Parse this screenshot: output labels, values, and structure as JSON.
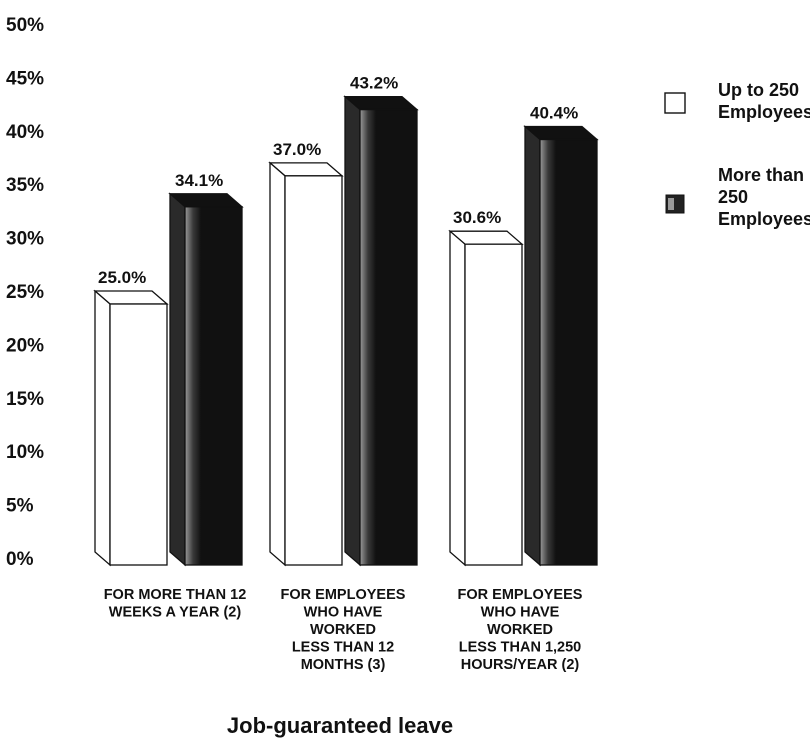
{
  "chart_data": {
    "type": "bar",
    "title": "Job-guaranteed leave",
    "ylim": [
      0,
      50
    ],
    "yticks": [
      "0%",
      "5%",
      "10%",
      "15%",
      "20%",
      "25%",
      "30%",
      "35%",
      "40%",
      "45%",
      "50%"
    ],
    "categories": [
      [
        "FOR MORE THAN 12",
        "WEEKS A YEAR (2)"
      ],
      [
        "FOR EMPLOYEES",
        "WHO HAVE",
        "WORKED",
        "LESS THAN 12",
        "MONTHS (3)"
      ],
      [
        "FOR EMPLOYEES",
        "WHO HAVE",
        "WORKED",
        "LESS THAN 1,250",
        "HOURS/YEAR (2)"
      ]
    ],
    "series": [
      {
        "name": "Up to 250 Employees",
        "legend_lines": [
          "Up to 250",
          "Employees"
        ],
        "values": [
          25.0,
          37.0,
          30.6
        ],
        "labels": [
          "25.0%",
          "37.0%",
          "30.6%"
        ],
        "color": "#ffffff"
      },
      {
        "name": "More than 250 Employees",
        "legend_lines": [
          "More than",
          "250",
          "Employees"
        ],
        "values": [
          34.1,
          43.2,
          40.4
        ],
        "labels": [
          "34.1%",
          "43.2%",
          "40.4%"
        ],
        "color": "#111111"
      }
    ],
    "grid": false,
    "legend_position": "right"
  }
}
